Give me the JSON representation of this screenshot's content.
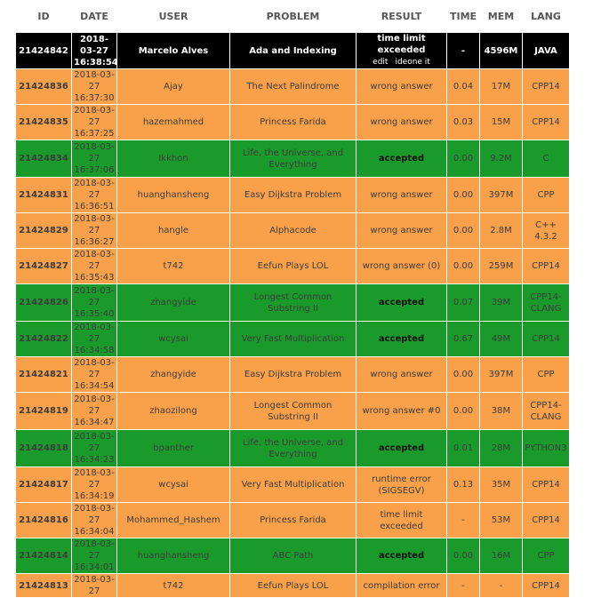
{
  "headers": [
    "ID",
    "DATE",
    "USER",
    "PROBLEM",
    "RESULT",
    "TIME",
    "MEM",
    "LANG"
  ],
  "links": {
    "edit": "edit",
    "ideone": "ideone it"
  },
  "colors": {
    "orange": "#f9a04a",
    "green": "#199a2a",
    "black": "#000000"
  },
  "rows": [
    {
      "id": "21424842",
      "date": "2018-03-27",
      "time_of_day": "16:38:54",
      "user": "Marcelo Alves",
      "problem": "Ada and Indexing",
      "result": "time limit exceeded",
      "time": "-",
      "mem": "4596M",
      "lang": "JAVA",
      "status": "black"
    },
    {
      "id": "21424836",
      "date": "2018-03-27",
      "time_of_day": "16:37:30",
      "user": "Ajay",
      "problem": "The Next Palindrome",
      "result": "wrong answer",
      "time": "0.04",
      "mem": "17M",
      "lang": "CPP14",
      "status": "orange"
    },
    {
      "id": "21424835",
      "date": "2018-03-27",
      "time_of_day": "16:37:25",
      "user": "hazemahmed",
      "problem": "Princess Farida",
      "result": "wrong answer",
      "time": "0.03",
      "mem": "15M",
      "lang": "CPP14",
      "status": "orange"
    },
    {
      "id": "21424834",
      "date": "2018-03-27",
      "time_of_day": "16:37:06",
      "user": "Ikkhon",
      "problem": "Life, the Universe, and Everything",
      "result": "accepted",
      "time": "0.00",
      "mem": "9.2M",
      "lang": "C",
      "status": "green"
    },
    {
      "id": "21424831",
      "date": "2018-03-27",
      "time_of_day": "16:36:51",
      "user": "huanghansheng",
      "problem": "Easy Dijkstra Problem",
      "result": "wrong answer",
      "time": "0.00",
      "mem": "397M",
      "lang": "CPP",
      "status": "orange"
    },
    {
      "id": "21424829",
      "date": "2018-03-27",
      "time_of_day": "16:36:27",
      "user": "hangle",
      "problem": "Alphacode",
      "result": "wrong answer",
      "time": "0.00",
      "mem": "2.8M",
      "lang": "C++ 4.3.2",
      "status": "orange"
    },
    {
      "id": "21424827",
      "date": "2018-03-27",
      "time_of_day": "16:35:43",
      "user": "t742",
      "problem": "Eefun Plays LOL",
      "result": "wrong answer (0)",
      "time": "0.00",
      "mem": "259M",
      "lang": "CPP14",
      "status": "orange"
    },
    {
      "id": "21424826",
      "date": "2018-03-27",
      "time_of_day": "16:35:40",
      "user": "zhangyide",
      "problem": "Longest Common Substring II",
      "result": "accepted",
      "time": "0.07",
      "mem": "39M",
      "lang": "CPP14-CLANG",
      "status": "green"
    },
    {
      "id": "21424822",
      "date": "2018-03-27",
      "time_of_day": "16:34:58",
      "user": "wcysai",
      "problem": "Very Fast Multiplication",
      "result": "accepted",
      "time": "0.67",
      "mem": "49M",
      "lang": "CPP14",
      "status": "green"
    },
    {
      "id": "21424821",
      "date": "2018-03-27",
      "time_of_day": "16:34:54",
      "user": "zhangyide",
      "problem": "Easy Dijkstra Problem",
      "result": "wrong answer",
      "time": "0.00",
      "mem": "397M",
      "lang": "CPP",
      "status": "orange"
    },
    {
      "id": "21424819",
      "date": "2018-03-27",
      "time_of_day": "16:34:47",
      "user": "zhaozilong",
      "problem": "Longest Common Substring II",
      "result": "wrong answer #0",
      "time": "0.00",
      "mem": "38M",
      "lang": "CPP14-CLANG",
      "status": "orange"
    },
    {
      "id": "21424818",
      "date": "2018-03-27",
      "time_of_day": "16:34:23",
      "user": "bpanther",
      "problem": "Life, the Universe, and Everything",
      "result": "accepted",
      "time": "0.01",
      "mem": "28M",
      "lang": "PYTHON3",
      "status": "green"
    },
    {
      "id": "21424817",
      "date": "2018-03-27",
      "time_of_day": "16:34:19",
      "user": "wcysai",
      "problem": "Very Fast Multiplication",
      "result": "runtime error (SIGSEGV)",
      "time": "0.13",
      "mem": "35M",
      "lang": "CPP14",
      "status": "orange"
    },
    {
      "id": "21424816",
      "date": "2018-03-27",
      "time_of_day": "16:34:04",
      "user": "Mohammed_Hashem",
      "problem": "Princess Farida",
      "result": "time limit exceeded",
      "time": "-",
      "mem": "53M",
      "lang": "CPP14",
      "status": "orange"
    },
    {
      "id": "21424814",
      "date": "2018-03-27",
      "time_of_day": "16:34:01",
      "user": "huanghansheng",
      "problem": "ABC Path",
      "result": "accepted",
      "time": "0.00",
      "mem": "16M",
      "lang": "CPP",
      "status": "green"
    },
    {
      "id": "21424813",
      "date": "2018-03-27",
      "time_of_day": "",
      "user": "t742",
      "problem": "Eefun Plays LOL",
      "result": "compilation error",
      "time": "-",
      "mem": "-",
      "lang": "CPP14",
      "status": "orange"
    }
  ]
}
